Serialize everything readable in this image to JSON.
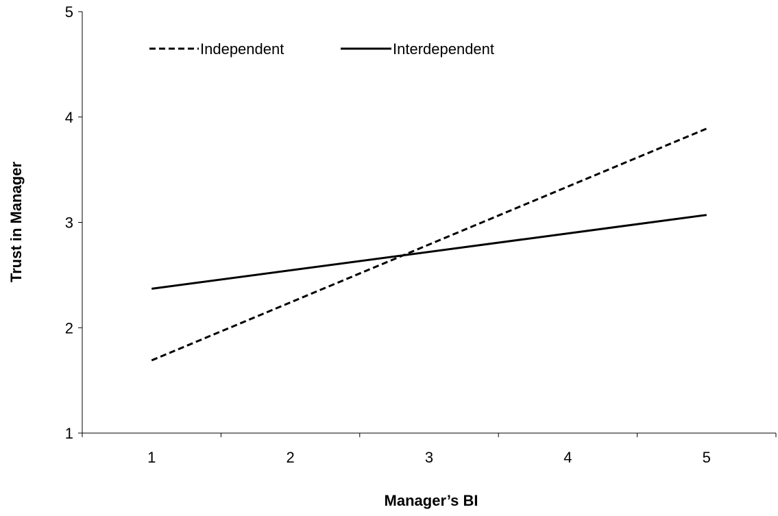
{
  "chart_data": {
    "type": "line",
    "title": "",
    "xlabel": "Manager’s BI",
    "ylabel": "Trust in Manager",
    "categories": [
      "1",
      "2",
      "3",
      "4",
      "5"
    ],
    "x": [
      1,
      5
    ],
    "xlim": [
      0.5,
      5.5
    ],
    "ylim": [
      1,
      5
    ],
    "yticks": [
      1,
      2,
      3,
      4,
      5
    ],
    "grid": false,
    "legend_position": "top-left",
    "series": [
      {
        "name": "Independent",
        "style": "dashed",
        "color": "#000000",
        "x": [
          1,
          5
        ],
        "values": [
          1.69,
          3.89
        ]
      },
      {
        "name": "Interdependent",
        "style": "solid",
        "color": "#000000",
        "x": [
          1,
          5
        ],
        "values": [
          2.37,
          3.07
        ]
      }
    ]
  }
}
